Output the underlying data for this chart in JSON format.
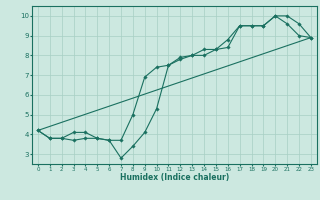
{
  "title": "",
  "xlabel": "Humidex (Indice chaleur)",
  "ylabel": "",
  "bg_color": "#cce8e0",
  "grid_color": "#a8cfc4",
  "line_color": "#1a7060",
  "xlim": [
    -0.5,
    23.5
  ],
  "ylim": [
    2.5,
    10.5
  ],
  "xticks": [
    0,
    1,
    2,
    3,
    4,
    5,
    6,
    7,
    8,
    9,
    10,
    11,
    12,
    13,
    14,
    15,
    16,
    17,
    18,
    19,
    20,
    21,
    22,
    23
  ],
  "yticks": [
    3,
    4,
    5,
    6,
    7,
    8,
    9,
    10
  ],
  "line1_x": [
    0,
    1,
    2,
    3,
    4,
    5,
    6,
    7,
    8,
    9,
    10,
    11,
    12,
    13,
    14,
    15,
    16,
    17,
    18,
    19,
    20,
    21,
    22,
    23
  ],
  "line1_y": [
    4.2,
    3.8,
    3.8,
    3.7,
    3.8,
    3.8,
    3.7,
    2.8,
    3.4,
    4.1,
    5.3,
    7.5,
    7.8,
    8.0,
    8.0,
    8.3,
    8.4,
    9.5,
    9.5,
    9.5,
    10.0,
    10.0,
    9.6,
    8.9
  ],
  "line2_x": [
    0,
    1,
    2,
    3,
    4,
    5,
    6,
    7,
    8,
    9,
    10,
    11,
    12,
    13,
    14,
    15,
    16,
    17,
    18,
    19,
    20,
    21,
    22,
    23
  ],
  "line2_y": [
    4.2,
    3.8,
    3.8,
    4.1,
    4.1,
    3.8,
    3.7,
    3.7,
    5.0,
    6.9,
    7.4,
    7.5,
    7.9,
    8.0,
    8.3,
    8.3,
    8.8,
    9.5,
    9.5,
    9.5,
    10.0,
    9.6,
    9.0,
    8.9
  ],
  "line3_x": [
    0,
    23
  ],
  "line3_y": [
    4.2,
    8.9
  ]
}
